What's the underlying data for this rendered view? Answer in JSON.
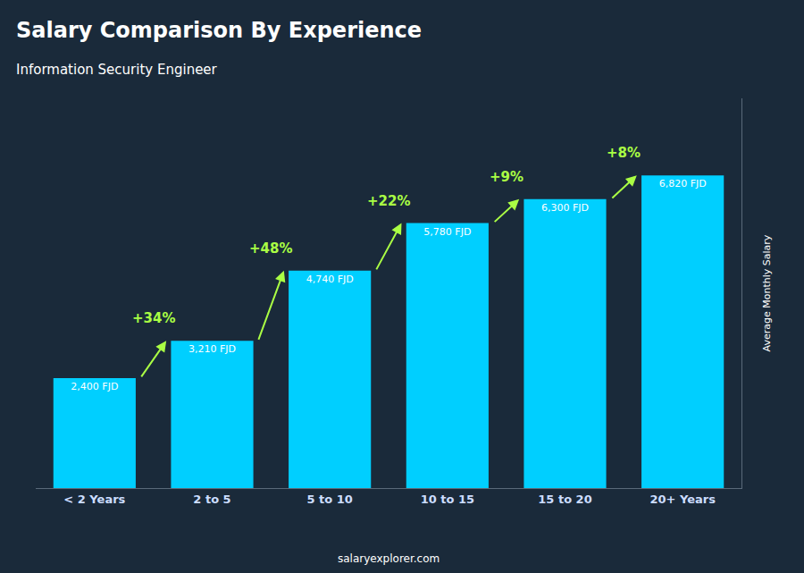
{
  "chart_data": {
    "type": "bar",
    "title": "Salary Comparison By Experience",
    "subtitle": "Information Security Engineer",
    "categories": [
      "< 2 Years",
      "2 to 5",
      "5 to 10",
      "10 to 15",
      "15 to 20",
      "20+ Years"
    ],
    "values": [
      2400,
      3210,
      4740,
      5780,
      6300,
      6820
    ],
    "value_labels": [
      "2,400 FJD",
      "3,210 FJD",
      "4,740 FJD",
      "5,780 FJD",
      "6,300 FJD",
      "6,820 FJD"
    ],
    "data_labels": true,
    "annotations": [
      "+34%",
      "+48%",
      "+22%",
      "+9%",
      "+8%"
    ],
    "ylabel": "Average Monthly Salary",
    "footer": "salaryexplorer.com",
    "color": "#00cfff",
    "ylim": [
      0,
      8500
    ],
    "tick_labels": "x",
    "grid": false
  }
}
